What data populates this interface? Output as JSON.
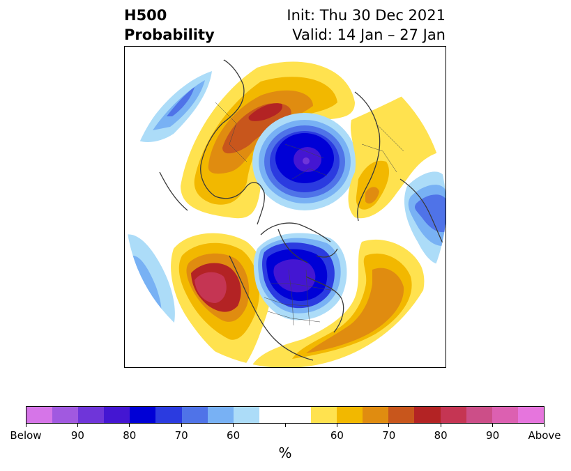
{
  "title": {
    "left_line1": "H500",
    "left_line2": "Probability",
    "right_line1": "Init: Thu 30 Dec 2021",
    "right_line2": "Valid: 14 Jan – 27 Jan"
  },
  "colorbar": {
    "colors": [
      "#d675e8",
      "#a159e0",
      "#6f35d9",
      "#4416d2",
      "#0000d6",
      "#2b3be0",
      "#4f73e8",
      "#78b1f4",
      "#acdcf8",
      "#ffffff",
      "#ffffff",
      "#ffe24f",
      "#f2b800",
      "#e08c10",
      "#c8561c",
      "#b32324",
      "#c53553",
      "#cc4e88",
      "#dc60b1",
      "#e675dd"
    ],
    "tick_labels": [
      "Below",
      "90",
      "80",
      "70",
      "60",
      "",
      "60",
      "70",
      "80",
      "90",
      "Above"
    ],
    "unit": "%"
  },
  "map": {
    "projection": "north-polar-stereographic",
    "features": [
      {
        "name": "positive-anomaly-western-us",
        "color": "#b32324",
        "category": "above"
      },
      {
        "name": "negative-anomaly-central-canada",
        "color": "#2b3be0",
        "category": "below"
      },
      {
        "name": "negative-anomaly-arctic-siberia",
        "color": "#0000d6",
        "category": "below"
      },
      {
        "name": "positive-anomaly-east-asia",
        "color": "#c8561c",
        "category": "above"
      },
      {
        "name": "positive-anomaly-north-atlantic",
        "color": "#e08c10",
        "category": "above"
      },
      {
        "name": "negative-anomaly-europe",
        "color": "#4f73e8",
        "category": "below"
      },
      {
        "name": "negative-anomaly-north-pacific",
        "color": "#4f73e8",
        "category": "below"
      }
    ]
  }
}
